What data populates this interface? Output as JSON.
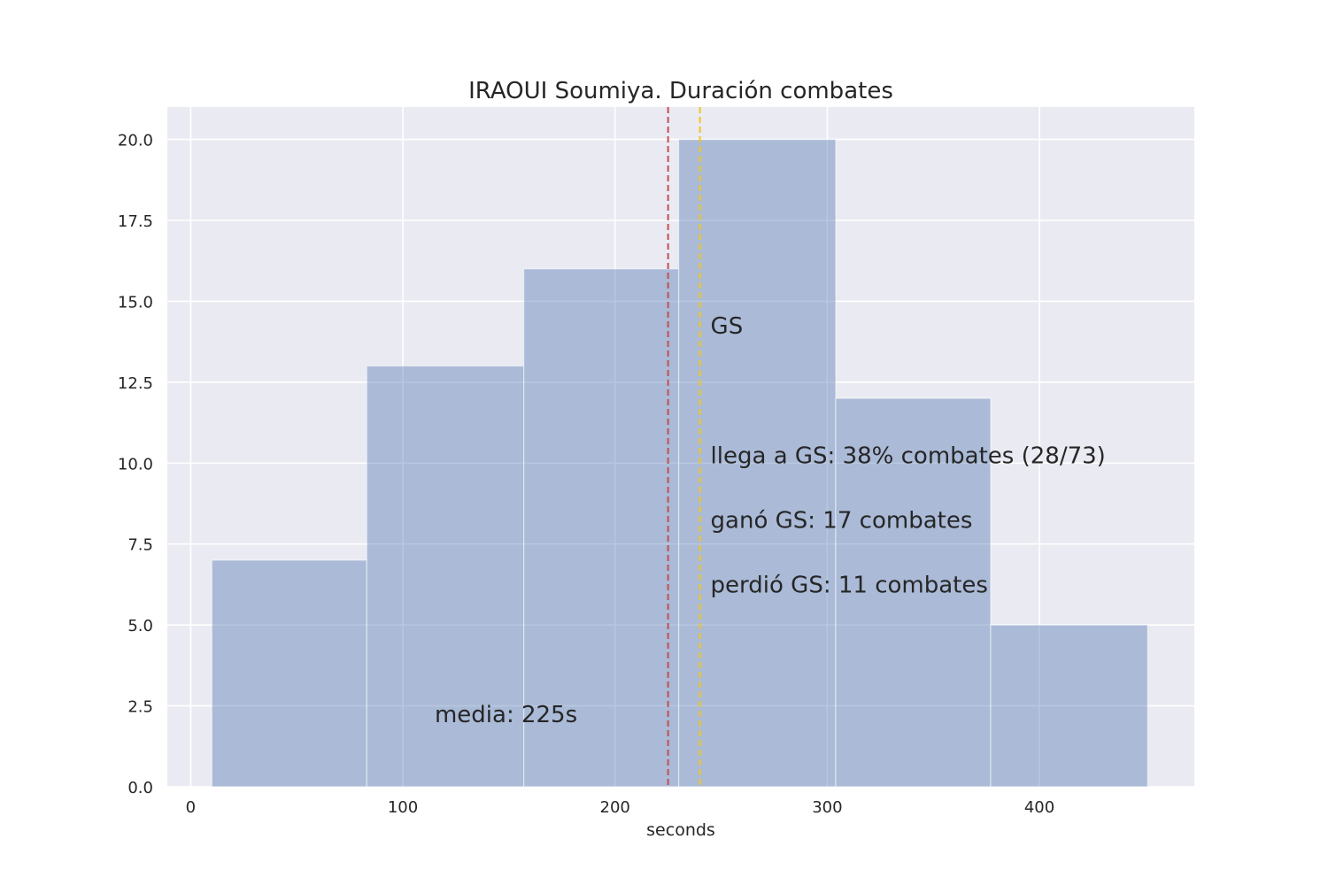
{
  "chart_data": {
    "type": "bar",
    "title": "IRAOUI Soumiya. Duración combates",
    "xlabel": "seconds",
    "ylabel": "",
    "xlim": [
      -11,
      473
    ],
    "ylim": [
      0,
      21
    ],
    "xticks": [
      0,
      100,
      200,
      300,
      400
    ],
    "yticks": [
      0.0,
      2.5,
      5.0,
      7.5,
      10.0,
      12.5,
      15.0,
      17.5,
      20.0
    ],
    "grid": true,
    "bins": [
      {
        "x0": 10,
        "x1": 83,
        "count": 7
      },
      {
        "x0": 83,
        "x1": 157,
        "count": 13
      },
      {
        "x0": 157,
        "x1": 230,
        "count": 16
      },
      {
        "x0": 230,
        "x1": 304,
        "count": 20
      },
      {
        "x0": 304,
        "x1": 377,
        "count": 12
      },
      {
        "x0": 377,
        "x1": 451,
        "count": 5
      }
    ],
    "vlines": [
      {
        "x": 225,
        "color": "#c44e52",
        "style": "dashed"
      },
      {
        "x": 240,
        "color": "#f5c518",
        "style": "dashed"
      }
    ],
    "annotations": [
      {
        "text": "media: 225s",
        "x": 115,
        "y": 2.0,
        "color": "#c44e52"
      },
      {
        "text": "GS",
        "x": 245,
        "y": 14.0,
        "color": "#262626"
      },
      {
        "text": "llega a GS: 38% combates (28/73)",
        "x": 245,
        "y": 10.0,
        "color": "#262626"
      },
      {
        "text": "ganó GS: 17 combates",
        "x": 245,
        "y": 8.0,
        "color": "#262626"
      },
      {
        "text": "perdió GS: 11 combates",
        "x": 245,
        "y": 6.0,
        "color": "#262626"
      }
    ],
    "colors": {
      "background": "#eaeaf2",
      "grid": "#ffffff",
      "bar_fill": "#4c72b0",
      "bar_opacity": 0.4
    }
  }
}
